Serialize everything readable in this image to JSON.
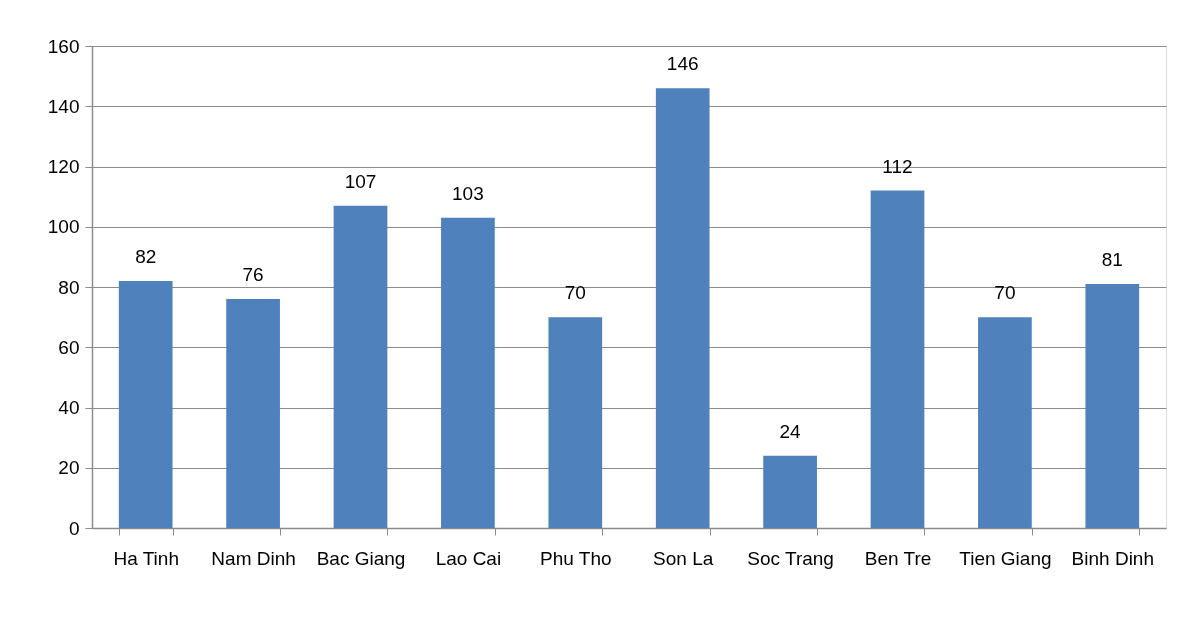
{
  "chart_data": {
    "type": "bar",
    "categories": [
      "Ha Tinh",
      "Nam Dinh",
      "Bac Giang",
      "Lao Cai",
      "Phu Tho",
      "Son La",
      "Soc Trang",
      "Ben Tre",
      "Tien Giang",
      "Binh Dinh"
    ],
    "values": [
      82,
      76,
      107,
      103,
      70,
      146,
      24,
      112,
      70,
      81
    ],
    "color": "#4f81bd",
    "ylim": [
      0,
      160
    ],
    "yticks": [
      0,
      20,
      40,
      60,
      80,
      100,
      120,
      140,
      160
    ],
    "grid": "y",
    "data_labels": true
  }
}
